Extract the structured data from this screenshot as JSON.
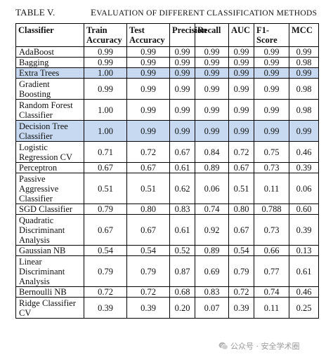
{
  "caption": {
    "label": "TABLE V.",
    "title": "Evaluation of different classification methods"
  },
  "table": {
    "headers": [
      "Classifier",
      "Train Accuracy",
      "Test Accuracy",
      "Precision",
      "Recall",
      "AUC",
      "F1-Score",
      "MCC"
    ],
    "highlight_color": "#c6d9f0",
    "rows": [
      {
        "classifier": "AdaBoost",
        "values": [
          "0.99",
          "0.99",
          "0.99",
          "0.99",
          "0.99",
          "0.99",
          "0.99"
        ],
        "highlight": false
      },
      {
        "classifier": "Bagging",
        "values": [
          "0.99",
          "0.99",
          "0.99",
          "0.99",
          "0.99",
          "0.99",
          "0.98"
        ],
        "highlight": false
      },
      {
        "classifier": "Extra Trees",
        "values": [
          "1.00",
          "0.99",
          "0.99",
          "0.99",
          "0.99",
          "0.99",
          "0.99"
        ],
        "highlight": true
      },
      {
        "classifier": "Gradient Boosting",
        "values": [
          "0.99",
          "0.99",
          "0.99",
          "0.99",
          "0.99",
          "0.99",
          "0.98"
        ],
        "highlight": false
      },
      {
        "classifier": "Random Forest Classifier",
        "values": [
          "1.00",
          "0.99",
          "0.99",
          "0.99",
          "0.99",
          "0.99",
          "0.98"
        ],
        "highlight": false
      },
      {
        "classifier": "Decision Tree Classifier",
        "values": [
          "1.00",
          "0.99",
          "0.99",
          "0.99",
          "0.99",
          "0.99",
          "0.99"
        ],
        "highlight": true
      },
      {
        "classifier": "Logistic Regression CV",
        "values": [
          "0.71",
          "0.72",
          "0.67",
          "0.84",
          "0.72",
          "0.75",
          "0.46"
        ],
        "highlight": false
      },
      {
        "classifier": "Perceptron",
        "values": [
          "0.67",
          "0.67",
          "0.61",
          "0.89",
          "0.67",
          "0.73",
          "0.39"
        ],
        "highlight": false
      },
      {
        "classifier": "Passive Aggressive Classifier",
        "values": [
          "0.51",
          "0.51",
          "0.62",
          "0.06",
          "0.51",
          "0.11",
          "0.06"
        ],
        "highlight": false
      },
      {
        "classifier": "SGD Classifier",
        "values": [
          "0.79",
          "0.80",
          "0.83",
          "0.74",
          "0.80",
          "0.788",
          "0.60"
        ],
        "highlight": false
      },
      {
        "classifier": "Quadratic Discriminant Analysis",
        "values": [
          "0.67",
          "0.67",
          "0.61",
          "0.92",
          "0.67",
          "0.73",
          "0.39"
        ],
        "highlight": false
      },
      {
        "classifier": "Gaussian NB",
        "values": [
          "0.54",
          "0.54",
          "0.52",
          "0.89",
          "0.54",
          "0.66",
          "0.13"
        ],
        "highlight": false
      },
      {
        "classifier": "Linear Discriminant Analysis",
        "values": [
          "0.79",
          "0.79",
          "0.87",
          "0.69",
          "0.79",
          "0.77",
          "0.61"
        ],
        "highlight": false
      },
      {
        "classifier": "Bernoulli NB",
        "values": [
          "0.72",
          "0.72",
          "0.68",
          "0.83",
          "0.72",
          "0.74",
          "0.46"
        ],
        "highlight": false
      },
      {
        "classifier": "Ridge Classifier CV",
        "values": [
          "0.39",
          "0.39",
          "0.20",
          "0.07",
          "0.39",
          "0.11",
          "0.25"
        ],
        "highlight": false
      }
    ]
  },
  "watermark": {
    "text": "公众号 · 安全学术圈",
    "icon": "wechat-logo-icon"
  }
}
